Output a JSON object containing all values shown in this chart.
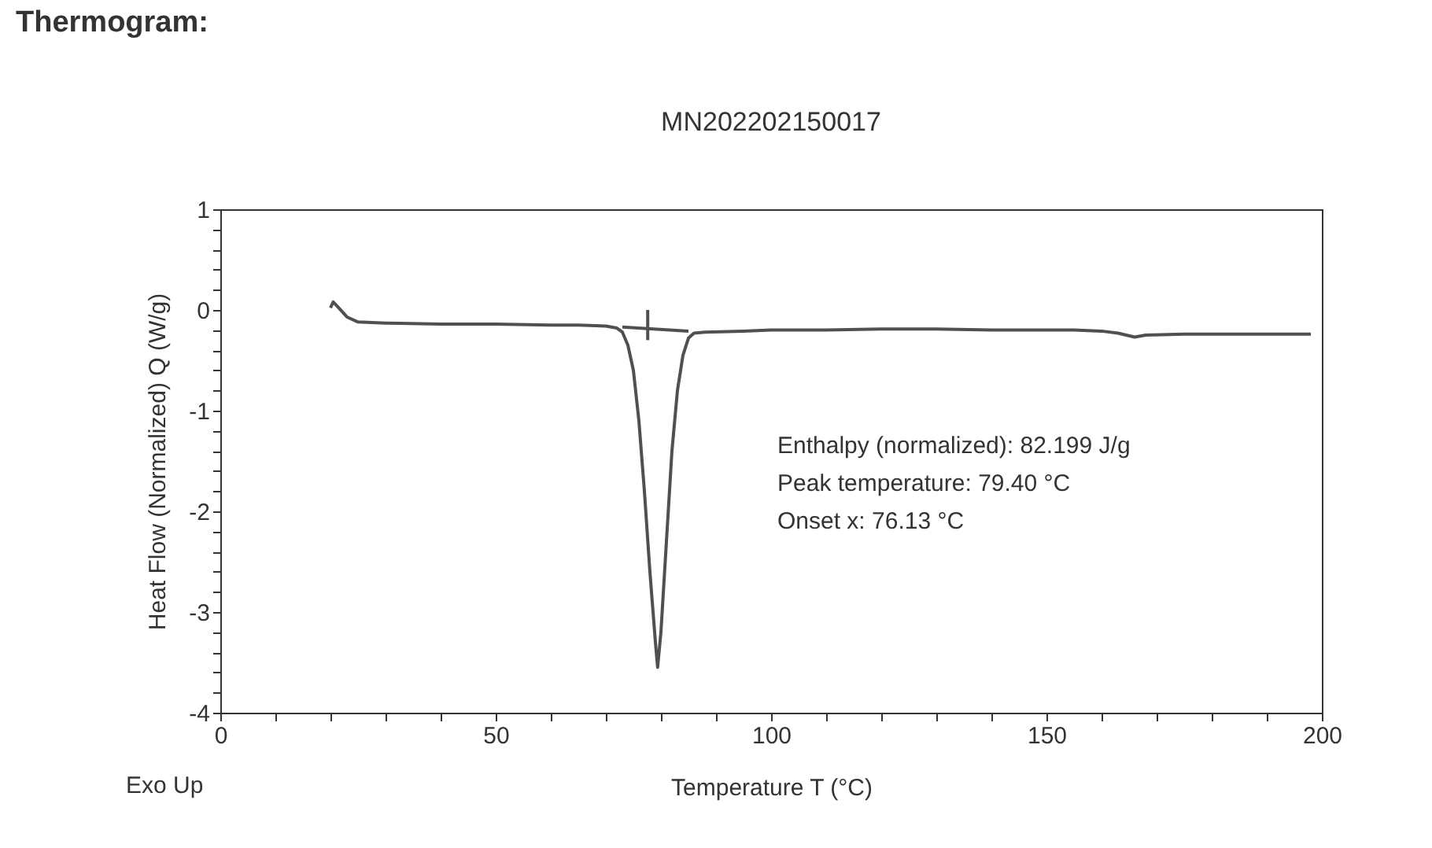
{
  "chart_data": {
    "type": "line",
    "title": "Thermogram:",
    "subtitle": "MN202202150017",
    "xlabel": "Temperature T (°C)",
    "ylabel": "Heat Flow (Normalized) Q (W/g)",
    "annotations": [
      "Enthalpy (normalized): 82.199 J/g",
      "Peak temperature: 79.40 °C",
      "Onset x: 76.13 °C",
      "Exo Up"
    ],
    "series": [
      {
        "color": "#505050",
        "x": [
          20,
          20.5,
          21.5,
          23,
          25,
          30,
          40,
          50,
          60,
          65,
          70,
          72,
          73,
          74,
          75,
          76,
          77,
          78,
          79,
          79.4,
          80,
          81,
          82,
          83,
          84,
          85,
          86,
          88,
          95,
          100,
          110,
          120,
          130,
          140,
          150,
          155,
          160,
          163,
          166,
          168,
          175,
          185,
          198
        ],
        "values": [
          0.02,
          0.08,
          0.02,
          -0.07,
          -0.12,
          -0.13,
          -0.14,
          -0.14,
          -0.15,
          -0.15,
          -0.16,
          -0.18,
          -0.22,
          -0.35,
          -0.6,
          -1.1,
          -1.8,
          -2.6,
          -3.3,
          -3.55,
          -3.2,
          -2.3,
          -1.4,
          -0.8,
          -0.45,
          -0.28,
          -0.23,
          -0.22,
          -0.21,
          -0.2,
          -0.2,
          -0.19,
          -0.19,
          -0.2,
          -0.2,
          -0.2,
          -0.21,
          -0.23,
          -0.27,
          -0.25,
          -0.24,
          -0.24,
          -0.24
        ]
      },
      {
        "color": "#505050",
        "x": [
          73,
          85
        ],
        "values": [
          -0.17,
          -0.21
        ]
      },
      {
        "color": "#505050",
        "x": [
          77.6,
          77.6
        ],
        "values": [
          0.0,
          -0.3
        ]
      }
    ],
    "xlim": [
      0,
      200
    ],
    "ylim": [
      -4,
      1
    ],
    "xticks": [
      0,
      {
        "value": 10,
        "label": null
      },
      {
        "value": 20,
        "label": null
      },
      {
        "value": 30,
        "label": null
      },
      {
        "value": 40,
        "label": null
      },
      50,
      {
        "value": 60,
        "label": null
      },
      {
        "value": 70,
        "label": null
      },
      {
        "value": 80,
        "label": null
      },
      {
        "value": 90,
        "label": null
      },
      100,
      {
        "value": 110,
        "label": null
      },
      {
        "value": 120,
        "label": null
      },
      {
        "value": 130,
        "label": null
      },
      {
        "value": 140,
        "label": null
      },
      150,
      {
        "value": 160,
        "label": null
      },
      {
        "value": 170,
        "label": null
      },
      {
        "value": 180,
        "label": null
      },
      {
        "value": 190,
        "label": null
      },
      200
    ],
    "yticks": [
      -4,
      {
        "value": -3.8,
        "label": null
      },
      {
        "value": -3.6,
        "label": null
      },
      {
        "value": -3.4,
        "label": null
      },
      {
        "value": -3.2,
        "label": null
      },
      -3,
      {
        "value": -2.8,
        "label": null
      },
      {
        "value": -2.6,
        "label": null
      },
      {
        "value": -2.4,
        "label": null
      },
      {
        "value": -2.2,
        "label": null
      },
      -2,
      {
        "value": -1.8,
        "label": null
      },
      {
        "value": -1.6,
        "label": null
      },
      {
        "value": -1.4,
        "label": null
      },
      {
        "value": -1.2,
        "label": null
      },
      -1,
      {
        "value": -0.8,
        "label": null
      },
      {
        "value": -0.6,
        "label": null
      },
      {
        "value": -0.4,
        "label": null
      },
      {
        "value": -0.2,
        "label": null
      },
      0,
      {
        "value": 0.2,
        "label": null
      },
      {
        "value": 0.4,
        "label": null
      },
      {
        "value": 0.6,
        "label": null
      },
      {
        "value": 0.8,
        "label": null
      },
      1
    ],
    "grid": false
  }
}
